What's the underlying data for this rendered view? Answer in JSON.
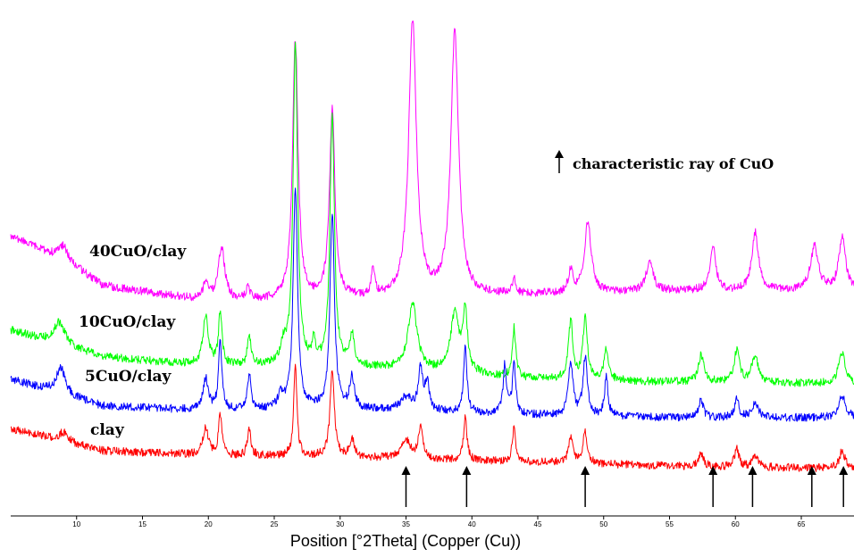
{
  "chart_data": {
    "type": "line",
    "xlabel": "Position [°2Theta] (Copper (Cu))",
    "ylabel": "",
    "xlim": [
      5,
      69
    ],
    "x_ticks": [
      10,
      15,
      20,
      25,
      30,
      35,
      40,
      45,
      50,
      55,
      60,
      65
    ],
    "grid": false,
    "series": [
      {
        "name": "40CuO/clay",
        "color": "#ff00ff",
        "baseline": [
          [
            5,
            265
          ],
          [
            9,
            290
          ],
          [
            12,
            320
          ],
          [
            20,
            338
          ],
          [
            30,
            336
          ],
          [
            45,
            330
          ],
          [
            55,
            326
          ],
          [
            69,
            326
          ]
        ],
        "peaks": [
          [
            9,
            0.4,
            15
          ],
          [
            19.8,
            0.25,
            20
          ],
          [
            21,
            0.3,
            60
          ],
          [
            23,
            0.2,
            12
          ],
          [
            26.6,
            0.25,
            290
          ],
          [
            29.4,
            0.25,
            210
          ],
          [
            32.5,
            0.15,
            30
          ],
          [
            35.5,
            0.35,
            310
          ],
          [
            38.7,
            0.35,
            295
          ],
          [
            43.2,
            0.15,
            20
          ],
          [
            47.5,
            0.2,
            25
          ],
          [
            48.8,
            0.3,
            80
          ],
          [
            53.5,
            0.3,
            35
          ],
          [
            58.3,
            0.25,
            50
          ],
          [
            61.5,
            0.3,
            65
          ],
          [
            66,
            0.35,
            50
          ],
          [
            68.1,
            0.3,
            60
          ]
        ]
      },
      {
        "name": "10CuO/clay",
        "color": "#00ff00",
        "baseline": [
          [
            5,
            370
          ],
          [
            12,
            400
          ],
          [
            20,
            410
          ],
          [
            30,
            410
          ],
          [
            45,
            425
          ],
          [
            55,
            428
          ],
          [
            69,
            430
          ]
        ],
        "peaks": [
          [
            8.7,
            0.5,
            25
          ],
          [
            19.8,
            0.25,
            55
          ],
          [
            20.9,
            0.15,
            60
          ],
          [
            23.1,
            0.15,
            35
          ],
          [
            25.7,
            0.25,
            20
          ],
          [
            26.6,
            0.2,
            360
          ],
          [
            28,
            0.15,
            25
          ],
          [
            29.4,
            0.2,
            280
          ],
          [
            30.9,
            0.2,
            35
          ],
          [
            35.5,
            0.4,
            75
          ],
          [
            38.7,
            0.4,
            65
          ],
          [
            39.5,
            0.2,
            65
          ],
          [
            43.2,
            0.15,
            55
          ],
          [
            47.5,
            0.2,
            65
          ],
          [
            48.6,
            0.2,
            70
          ],
          [
            50.2,
            0.2,
            35
          ],
          [
            57.4,
            0.25,
            30
          ],
          [
            60.1,
            0.25,
            35
          ],
          [
            61.5,
            0.3,
            30
          ],
          [
            68.1,
            0.3,
            35
          ]
        ]
      },
      {
        "name": "5CuO/clay",
        "color": "#0000ff",
        "baseline": [
          [
            5,
            425
          ],
          [
            12,
            455
          ],
          [
            20,
            460
          ],
          [
            30,
            458
          ],
          [
            45,
            465
          ],
          [
            55,
            468
          ],
          [
            69,
            468
          ]
        ],
        "peaks": [
          [
            8.8,
            0.4,
            30
          ],
          [
            19.8,
            0.25,
            35
          ],
          [
            20.9,
            0.15,
            75
          ],
          [
            23.1,
            0.15,
            40
          ],
          [
            25.5,
            0.25,
            15
          ],
          [
            26.6,
            0.2,
            245
          ],
          [
            29.4,
            0.2,
            220
          ],
          [
            30.9,
            0.2,
            35
          ],
          [
            35,
            0.5,
            15
          ],
          [
            36.1,
            0.2,
            45
          ],
          [
            36.6,
            0.2,
            30
          ],
          [
            39.5,
            0.15,
            75
          ],
          [
            42.5,
            0.15,
            55
          ],
          [
            43.2,
            0.15,
            55
          ],
          [
            47.5,
            0.2,
            60
          ],
          [
            48.6,
            0.2,
            65
          ],
          [
            50.2,
            0.15,
            45
          ],
          [
            57.4,
            0.2,
            20
          ],
          [
            60.1,
            0.2,
            20
          ],
          [
            61.5,
            0.3,
            15
          ],
          [
            68.1,
            0.3,
            25
          ]
        ]
      },
      {
        "name": "clay",
        "color": "#ff0000",
        "baseline": [
          [
            5,
            480
          ],
          [
            12,
            505
          ],
          [
            20,
            510
          ],
          [
            30,
            512
          ],
          [
            45,
            518
          ],
          [
            55,
            522
          ],
          [
            69,
            525
          ]
        ],
        "peaks": [
          [
            9,
            0.4,
            10
          ],
          [
            19.8,
            0.25,
            30
          ],
          [
            20.9,
            0.15,
            45
          ],
          [
            23.1,
            0.15,
            30
          ],
          [
            26.6,
            0.15,
            100
          ],
          [
            29.4,
            0.2,
            95
          ],
          [
            30.9,
            0.2,
            20
          ],
          [
            35,
            0.4,
            20
          ],
          [
            36.1,
            0.2,
            35
          ],
          [
            39.5,
            0.15,
            50
          ],
          [
            43.2,
            0.15,
            40
          ],
          [
            47.5,
            0.2,
            30
          ],
          [
            48.6,
            0.2,
            35
          ],
          [
            57.4,
            0.2,
            15
          ],
          [
            60.1,
            0.2,
            20
          ],
          [
            61.5,
            0.25,
            12
          ],
          [
            68.1,
            0.25,
            20
          ]
        ]
      }
    ],
    "cuo_markers": [
      35,
      39.6,
      48.6,
      58.3,
      61.3,
      65.8,
      68.2
    ],
    "legend": {
      "text": "characteristic ray of CuO",
      "placement": "top-right"
    }
  }
}
